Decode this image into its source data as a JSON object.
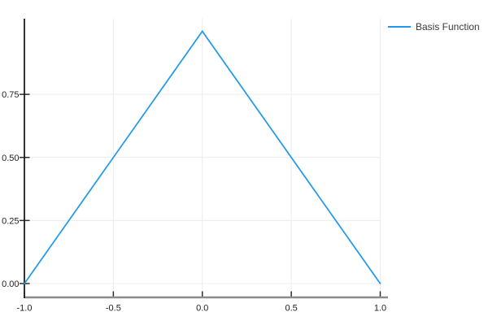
{
  "legend": {
    "items": [
      {
        "label": "Basis Function",
        "color": "#1e97ec"
      }
    ],
    "position": "top-right-outside"
  },
  "chart_data": {
    "type": "line",
    "title": "",
    "xlabel": "",
    "ylabel": "",
    "series": [
      {
        "name": "Basis Function",
        "color": "#1e97ec",
        "x": [
          -1.0,
          0.0,
          1.0
        ],
        "y": [
          0.0,
          1.0,
          0.0
        ]
      }
    ],
    "xlim": [
      -1.0,
      1.0
    ],
    "ylim": [
      -0.05,
      1.05
    ],
    "x_ticks": [
      -1.0,
      -0.5,
      0.0,
      0.5,
      1.0
    ],
    "x_tick_labels": [
      "-1.0",
      "-0.5",
      "0.0",
      "0.5",
      "1.0"
    ],
    "y_ticks": [
      0.0,
      0.25,
      0.5,
      0.75
    ],
    "y_tick_labels": [
      "0.00",
      "0.25",
      "0.50",
      "0.75"
    ],
    "grid": true,
    "legend_position": "top-right-outside",
    "colors": {
      "line": "#1e97ec",
      "grid": "#ececec",
      "x_axis": "#8c8c8c",
      "y_axis": "#1c1c1c",
      "tick": "#2d2d2d",
      "tick_label": "#222222",
      "legend_text": "#3a3a3a",
      "background": "#ffffff"
    }
  }
}
